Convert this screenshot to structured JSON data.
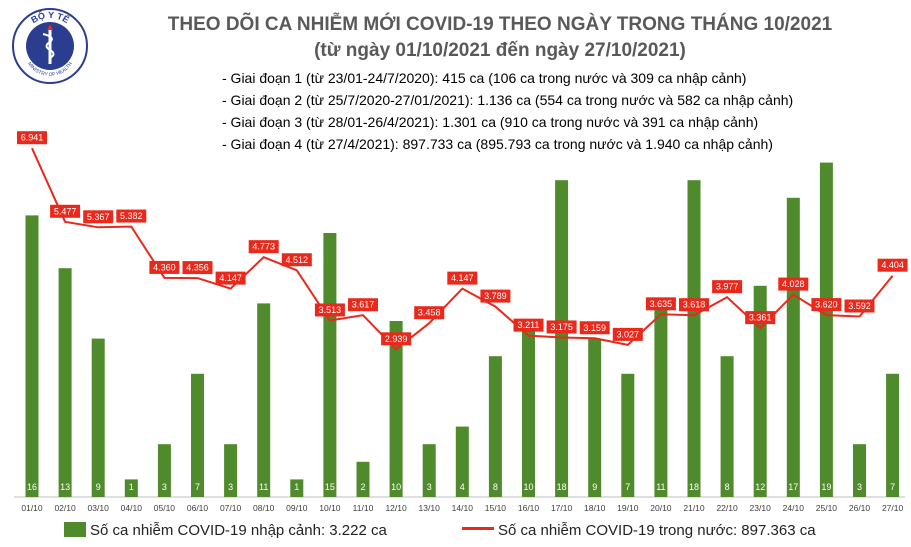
{
  "header": {
    "title_line_1": "THEO DÕI CA NHIỄM MỚI COVID-19 THEO NGÀY TRONG THÁNG 10/2021",
    "title_line_2": "(từ ngày 01/10/2021 đến ngày 27/10/2021)",
    "logo_text_top": "BỘ Y TẾ",
    "logo_text_bottom": "MINISTRY OF HEALTH"
  },
  "notes": [
    "- Giai đoạn 1 (từ 23/01-24/7/2020): 415 ca (106 ca trong nước và 309 ca nhập cảnh)",
    "- Giai đoạn 2 (từ 25/7/2020-27/01/2021): 1.136 ca (554 ca trong nước và 582 ca nhập cảnh)",
    "- Giai đoạn 3 (từ 28/01-26/4/2021): 1.301 ca (910 ca trong nước và 391 ca nhập cảnh)",
    "- Giai đoạn 4 (từ 27/4/2021): 897.733 ca (895.793 ca trong nước và 1.940 ca nhập cảnh)"
  ],
  "legend": {
    "bars_label": "Số ca nhiễm COVID-19 nhập cảnh: 3.222 ca",
    "line_label": "Số ca nhiễm COVID-19 trong nước: 897.363 ca"
  },
  "colors": {
    "bar": "#4f8a2c",
    "line": "#e8291c",
    "label_bg": "#e8291c",
    "label_text": "#ffffff",
    "logo": "#2a3d8f"
  },
  "chart_data": {
    "type": "bar",
    "categories": [
      "01/10",
      "02/10",
      "03/10",
      "04/10",
      "05/10",
      "06/10",
      "07/10",
      "08/10",
      "09/10",
      "10/10",
      "11/10",
      "12/10",
      "13/10",
      "14/10",
      "15/10",
      "16/10",
      "17/10",
      "18/10",
      "19/10",
      "20/10",
      "21/10",
      "22/10",
      "23/10",
      "24/10",
      "25/10",
      "26/10",
      "27/10"
    ],
    "series": [
      {
        "name": "Số ca nhiễm COVID-19 nhập cảnh",
        "type": "bar",
        "axis": "right",
        "values": [
          16,
          13,
          9,
          1,
          3,
          7,
          3,
          11,
          1,
          15,
          2,
          10,
          3,
          4,
          8,
          10,
          18,
          9,
          7,
          11,
          18,
          8,
          12,
          17,
          19,
          3,
          7
        ],
        "labels": [
          "16",
          "13",
          "9",
          "1",
          "3",
          "7",
          "3",
          "11",
          "1",
          "15",
          "2",
          "10",
          "3",
          "4",
          "8",
          "10",
          "18",
          "9",
          "7",
          "11",
          "18",
          "8",
          "12",
          "17",
          "19",
          "3",
          "7"
        ]
      },
      {
        "name": "Số ca nhiễm COVID-19 trong nước",
        "type": "line",
        "axis": "left",
        "values": [
          6941,
          5477,
          5367,
          5382,
          4360,
          4356,
          4147,
          4773,
          4512,
          3513,
          3617,
          2939,
          3458,
          4147,
          3789,
          3211,
          3175,
          3159,
          3027,
          3635,
          3618,
          3977,
          3361,
          4028,
          3620,
          3592,
          4404
        ],
        "labels": [
          "6.941",
          "5.477",
          "5.367",
          "5.382",
          "4.360",
          "4.356",
          "4.147",
          "4.773",
          "4.512",
          "3.513",
          "3.617",
          "2.939",
          "3.458",
          "4.147",
          "3.789",
          "3.211",
          "3.175",
          "3.159",
          "3.027",
          "3.635",
          "3.618",
          "3.977",
          "3.361",
          "4.028",
          "3.620",
          "3.592",
          "4.404"
        ]
      }
    ],
    "ylim_line": [
      0,
      8000
    ],
    "ylim_bars": [
      0,
      20
    ],
    "grid": false
  }
}
